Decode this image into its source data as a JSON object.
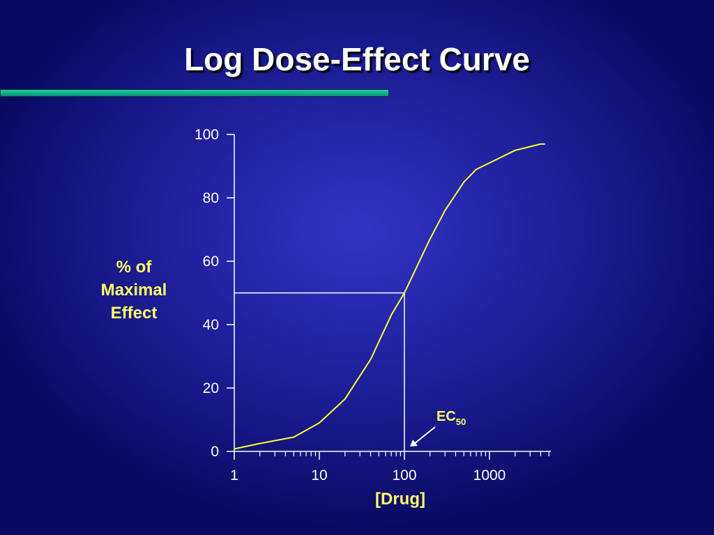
{
  "slide": {
    "title": "Log Dose-Effect Curve",
    "accent_color": "#17b58a"
  },
  "chart_data": {
    "type": "line",
    "title": "",
    "xlabel": "[Drug]",
    "ylabel_lines": [
      "% of",
      "Maximal",
      "Effect"
    ],
    "x_scale": "log",
    "xlim": [
      1,
      5000
    ],
    "ylim": [
      0,
      100
    ],
    "x_ticks": [
      1,
      10,
      100,
      1000
    ],
    "x_tick_labels": [
      "1",
      "10",
      "100",
      "1000"
    ],
    "y_ticks": [
      0,
      20,
      40,
      60,
      80,
      100
    ],
    "y_tick_labels": [
      "0",
      "20",
      "40",
      "60",
      "80",
      "100"
    ],
    "grid": false,
    "series": [
      {
        "name": "",
        "color": "#ffff33",
        "x": [
          1,
          2,
          5,
          10,
          20,
          40,
          70,
          100,
          150,
          200,
          300,
          500,
          700,
          1000,
          2000,
          4000,
          4500
        ],
        "y": [
          0.8,
          2.5,
          4.5,
          9,
          16.5,
          29,
          43,
          50,
          60,
          67,
          76,
          85,
          89,
          91,
          95,
          97,
          97
        ]
      }
    ],
    "reference": {
      "ec50_x": 100,
      "ec50_y": 50,
      "color": "#ffffff"
    },
    "annotation": {
      "text": "EC",
      "subscript": "50",
      "points_to_x": 100,
      "points_to_y": 0
    }
  }
}
